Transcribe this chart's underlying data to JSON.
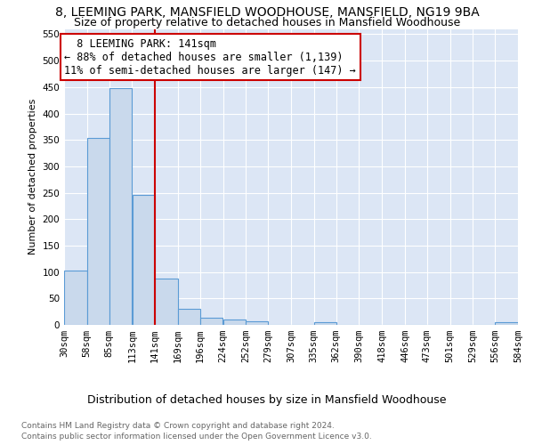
{
  "title": "8, LEEMING PARK, MANSFIELD WOODHOUSE, MANSFIELD, NG19 9BA",
  "subtitle": "Size of property relative to detached houses in Mansfield Woodhouse",
  "xlabel": "Distribution of detached houses by size in Mansfield Woodhouse",
  "ylabel": "Number of detached properties",
  "footnote1": "Contains HM Land Registry data © Crown copyright and database right 2024.",
  "footnote2": "Contains public sector information licensed under the Open Government Licence v3.0.",
  "annotation_line1": "8 LEEMING PARK: 141sqm",
  "annotation_line2": "← 88% of detached houses are smaller (1,139)",
  "annotation_line3": "11% of semi-detached houses are larger (147) →",
  "bar_color": "#c9d9ec",
  "bar_edge_color": "#5b9bd5",
  "vline_color": "#cc0000",
  "background_color": "#dce6f5",
  "fig_background": "#ffffff",
  "bins": [
    30,
    58,
    85,
    113,
    141,
    169,
    196,
    224,
    252,
    279,
    307,
    335,
    362,
    390,
    418,
    446,
    473,
    501,
    529,
    556,
    584
  ],
  "bar_values": [
    103,
    354,
    448,
    246,
    88,
    30,
    14,
    10,
    6,
    0,
    0,
    5,
    0,
    0,
    0,
    0,
    0,
    0,
    0,
    5
  ],
  "ylim": [
    0,
    560
  ],
  "yticks": [
    0,
    50,
    100,
    150,
    200,
    250,
    300,
    350,
    400,
    450,
    500,
    550
  ],
  "grid_color": "#ffffff",
  "title_fontsize": 10,
  "subtitle_fontsize": 9,
  "tick_fontsize": 7.5,
  "ylabel_fontsize": 8,
  "xlabel_fontsize": 9,
  "footnote_fontsize": 6.5,
  "annot_fontsize": 8.5
}
